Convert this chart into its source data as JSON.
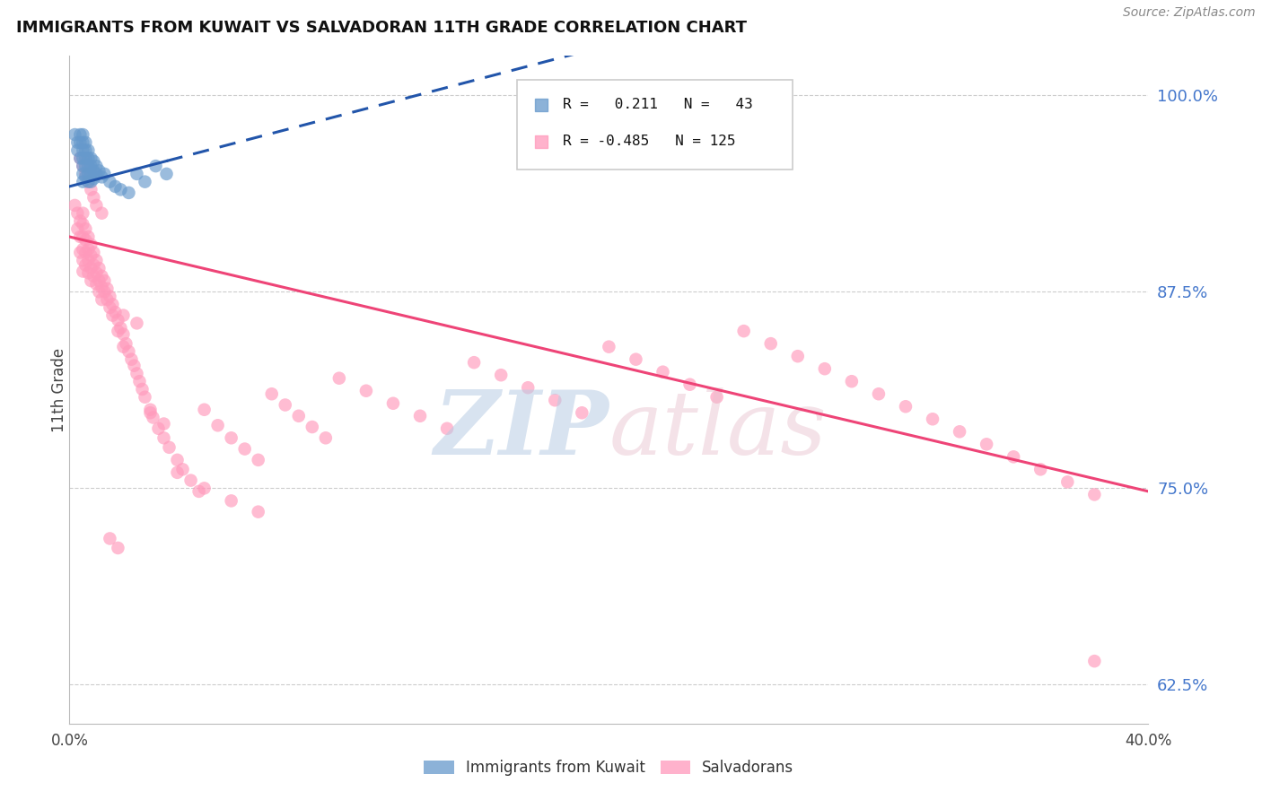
{
  "title": "IMMIGRANTS FROM KUWAIT VS SALVADORAN 11TH GRADE CORRELATION CHART",
  "source": "Source: ZipAtlas.com",
  "ylabel": "11th Grade",
  "legend_blue_r": "0.211",
  "legend_blue_n": "43",
  "legend_pink_r": "-0.485",
  "legend_pink_n": "125",
  "blue_color": "#6699CC",
  "pink_color": "#FF99BB",
  "blue_line_color": "#2255AA",
  "pink_line_color": "#EE4477",
  "background_color": "#FFFFFF",
  "xlim": [
    0.0,
    0.4
  ],
  "ylim": [
    0.6,
    1.025
  ],
  "y_ticks": [
    0.625,
    0.75,
    0.875,
    1.0
  ],
  "y_tick_labels": [
    "62.5%",
    "75.0%",
    "87.5%",
    "100.0%"
  ],
  "x_ticks": [
    0.0,
    0.1,
    0.2,
    0.3,
    0.4
  ],
  "x_tick_labels": [
    "0.0%",
    "",
    "",
    "",
    "40.0%"
  ],
  "blue_x": [
    0.002,
    0.003,
    0.003,
    0.004,
    0.004,
    0.004,
    0.005,
    0.005,
    0.005,
    0.005,
    0.005,
    0.005,
    0.005,
    0.006,
    0.006,
    0.006,
    0.006,
    0.006,
    0.007,
    0.007,
    0.007,
    0.007,
    0.007,
    0.008,
    0.008,
    0.008,
    0.008,
    0.009,
    0.009,
    0.009,
    0.01,
    0.01,
    0.011,
    0.012,
    0.013,
    0.015,
    0.017,
    0.019,
    0.022,
    0.025,
    0.028,
    0.032,
    0.036
  ],
  "blue_y": [
    0.975,
    0.97,
    0.965,
    0.975,
    0.97,
    0.96,
    0.975,
    0.97,
    0.965,
    0.96,
    0.955,
    0.95,
    0.945,
    0.97,
    0.965,
    0.96,
    0.955,
    0.948,
    0.965,
    0.96,
    0.955,
    0.95,
    0.945,
    0.96,
    0.955,
    0.95,
    0.945,
    0.958,
    0.952,
    0.947,
    0.955,
    0.95,
    0.952,
    0.948,
    0.95,
    0.945,
    0.942,
    0.94,
    0.938,
    0.95,
    0.945,
    0.955,
    0.95
  ],
  "pink_x": [
    0.002,
    0.003,
    0.003,
    0.004,
    0.004,
    0.004,
    0.005,
    0.005,
    0.005,
    0.005,
    0.005,
    0.005,
    0.006,
    0.006,
    0.006,
    0.006,
    0.007,
    0.007,
    0.007,
    0.007,
    0.008,
    0.008,
    0.008,
    0.008,
    0.009,
    0.009,
    0.009,
    0.01,
    0.01,
    0.01,
    0.011,
    0.011,
    0.011,
    0.012,
    0.012,
    0.012,
    0.013,
    0.013,
    0.014,
    0.014,
    0.015,
    0.015,
    0.016,
    0.016,
    0.017,
    0.018,
    0.018,
    0.019,
    0.02,
    0.02,
    0.021,
    0.022,
    0.023,
    0.024,
    0.025,
    0.026,
    0.027,
    0.028,
    0.03,
    0.031,
    0.033,
    0.035,
    0.037,
    0.04,
    0.042,
    0.045,
    0.048,
    0.05,
    0.055,
    0.06,
    0.065,
    0.07,
    0.075,
    0.08,
    0.085,
    0.09,
    0.095,
    0.1,
    0.11,
    0.12,
    0.13,
    0.14,
    0.15,
    0.16,
    0.17,
    0.18,
    0.19,
    0.2,
    0.21,
    0.22,
    0.23,
    0.24,
    0.25,
    0.26,
    0.27,
    0.28,
    0.29,
    0.3,
    0.31,
    0.32,
    0.33,
    0.34,
    0.35,
    0.36,
    0.37,
    0.38,
    0.004,
    0.005,
    0.006,
    0.007,
    0.008,
    0.009,
    0.01,
    0.012,
    0.015,
    0.018,
    0.02,
    0.025,
    0.03,
    0.035,
    0.04,
    0.05,
    0.06,
    0.07,
    0.38
  ],
  "pink_y": [
    0.93,
    0.925,
    0.915,
    0.92,
    0.91,
    0.9,
    0.925,
    0.918,
    0.91,
    0.902,
    0.895,
    0.888,
    0.915,
    0.908,
    0.9,
    0.892,
    0.91,
    0.902,
    0.895,
    0.887,
    0.905,
    0.898,
    0.89,
    0.882,
    0.9,
    0.892,
    0.885,
    0.895,
    0.887,
    0.88,
    0.89,
    0.882,
    0.875,
    0.885,
    0.878,
    0.87,
    0.882,
    0.875,
    0.877,
    0.87,
    0.872,
    0.865,
    0.867,
    0.86,
    0.862,
    0.857,
    0.85,
    0.852,
    0.848,
    0.84,
    0.842,
    0.837,
    0.832,
    0.828,
    0.823,
    0.818,
    0.813,
    0.808,
    0.8,
    0.795,
    0.788,
    0.782,
    0.776,
    0.768,
    0.762,
    0.755,
    0.748,
    0.8,
    0.79,
    0.782,
    0.775,
    0.768,
    0.81,
    0.803,
    0.796,
    0.789,
    0.782,
    0.82,
    0.812,
    0.804,
    0.796,
    0.788,
    0.83,
    0.822,
    0.814,
    0.806,
    0.798,
    0.84,
    0.832,
    0.824,
    0.816,
    0.808,
    0.85,
    0.842,
    0.834,
    0.826,
    0.818,
    0.81,
    0.802,
    0.794,
    0.786,
    0.778,
    0.77,
    0.762,
    0.754,
    0.746,
    0.96,
    0.955,
    0.95,
    0.945,
    0.94,
    0.935,
    0.93,
    0.925,
    0.718,
    0.712,
    0.86,
    0.855,
    0.798,
    0.791,
    0.76,
    0.75,
    0.742,
    0.735,
    0.64
  ],
  "blue_trend_x": [
    0.0,
    0.04
  ],
  "blue_trend_y": [
    0.942,
    0.96
  ],
  "pink_trend_x": [
    0.0,
    0.4
  ],
  "pink_trend_y": [
    0.91,
    0.748
  ]
}
